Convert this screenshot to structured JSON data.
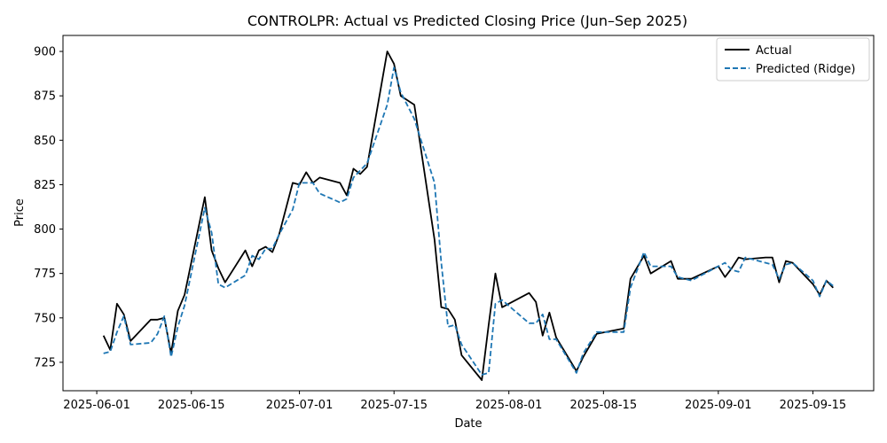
{
  "chart_data": {
    "type": "line",
    "title": "CONTROLPR: Actual vs Predicted Closing Price (Jun–Sep 2025)",
    "xlabel": "Date",
    "ylabel": "Price",
    "x_range": [
      "2025-05-27",
      "2025-09-24"
    ],
    "ylim": [
      709,
      909
    ],
    "x_ticks": [
      "2025-06-01",
      "2025-06-15",
      "2025-07-01",
      "2025-07-15",
      "2025-08-01",
      "2025-08-15",
      "2025-09-01",
      "2025-09-15"
    ],
    "y_ticks": [
      725,
      750,
      775,
      800,
      825,
      850,
      875,
      900
    ],
    "grid": false,
    "legend_position": "top-right",
    "series": [
      {
        "name": "Actual",
        "color": "#000000",
        "style": "solid",
        "x": [
          "2025-06-02",
          "2025-06-03",
          "2025-06-04",
          "2025-06-05",
          "2025-06-06",
          "2025-06-09",
          "2025-06-10",
          "2025-06-11",
          "2025-06-12",
          "2025-06-13",
          "2025-06-14",
          "2025-06-17",
          "2025-06-18",
          "2025-06-19",
          "2025-06-20",
          "2025-06-23",
          "2025-06-24",
          "2025-06-25",
          "2025-06-26",
          "2025-06-27",
          "2025-06-28",
          "2025-06-30",
          "2025-07-01",
          "2025-07-02",
          "2025-07-03",
          "2025-07-04",
          "2025-07-07",
          "2025-07-08",
          "2025-07-09",
          "2025-07-10",
          "2025-07-11",
          "2025-07-14",
          "2025-07-15",
          "2025-07-16",
          "2025-07-18",
          "2025-07-21",
          "2025-07-22",
          "2025-07-23",
          "2025-07-24",
          "2025-07-25",
          "2025-07-28",
          "2025-07-29",
          "2025-07-30",
          "2025-07-31",
          "2025-08-04",
          "2025-08-05",
          "2025-08-06",
          "2025-08-07",
          "2025-08-08",
          "2025-08-11",
          "2025-08-12",
          "2025-08-14",
          "2025-08-18",
          "2025-08-19",
          "2025-08-21",
          "2025-08-22",
          "2025-08-25",
          "2025-08-26",
          "2025-08-28",
          "2025-09-01",
          "2025-09-02",
          "2025-09-03",
          "2025-09-04",
          "2025-09-05",
          "2025-09-08",
          "2025-09-09",
          "2025-09-10",
          "2025-09-11",
          "2025-09-12",
          "2025-09-15",
          "2025-09-16",
          "2025-09-17",
          "2025-09-18"
        ],
        "values": [
          740,
          732,
          758,
          752,
          737,
          749,
          749,
          750,
          730,
          754,
          763,
          818,
          788,
          778,
          770,
          788,
          779,
          788,
          790,
          787,
          797,
          826,
          825,
          832,
          826,
          829,
          826,
          819,
          834,
          831,
          835,
          900,
          893,
          875,
          870,
          794,
          756,
          755,
          749,
          729,
          715,
          746,
          775,
          756,
          764,
          759,
          740,
          753,
          739,
          720,
          728,
          741,
          744,
          772,
          785,
          775,
          782,
          772,
          772,
          779,
          773,
          778,
          784,
          783,
          784,
          784,
          770,
          782,
          781,
          769,
          763,
          771,
          767
        ]
      },
      {
        "name": "Predicted (Ridge)",
        "color": "#1f77b4",
        "style": "dashed",
        "x": [
          "2025-06-02",
          "2025-06-03",
          "2025-06-04",
          "2025-06-05",
          "2025-06-06",
          "2025-06-09",
          "2025-06-10",
          "2025-06-11",
          "2025-06-12",
          "2025-06-13",
          "2025-06-14",
          "2025-06-17",
          "2025-06-18",
          "2025-06-19",
          "2025-06-20",
          "2025-06-23",
          "2025-06-24",
          "2025-06-25",
          "2025-06-26",
          "2025-06-27",
          "2025-06-28",
          "2025-06-30",
          "2025-07-01",
          "2025-07-02",
          "2025-07-03",
          "2025-07-04",
          "2025-07-07",
          "2025-07-08",
          "2025-07-09",
          "2025-07-10",
          "2025-07-11",
          "2025-07-14",
          "2025-07-15",
          "2025-07-16",
          "2025-07-18",
          "2025-07-21",
          "2025-07-22",
          "2025-07-23",
          "2025-07-24",
          "2025-07-25",
          "2025-07-28",
          "2025-07-29",
          "2025-07-30",
          "2025-07-31",
          "2025-08-04",
          "2025-08-05",
          "2025-08-06",
          "2025-08-07",
          "2025-08-08",
          "2025-08-11",
          "2025-08-12",
          "2025-08-14",
          "2025-08-18",
          "2025-08-19",
          "2025-08-21",
          "2025-08-22",
          "2025-08-25",
          "2025-08-26",
          "2025-08-28",
          "2025-09-01",
          "2025-09-02",
          "2025-09-03",
          "2025-09-04",
          "2025-09-05",
          "2025-09-08",
          "2025-09-09",
          "2025-09-10",
          "2025-09-11",
          "2025-09-12",
          "2025-09-15",
          "2025-09-16",
          "2025-09-17",
          "2025-09-18"
        ],
        "values": [
          730,
          731,
          742,
          751,
          735,
          736,
          741,
          751,
          728,
          745,
          757,
          812,
          798,
          769,
          767,
          774,
          785,
          783,
          789,
          789,
          797,
          811,
          826,
          826,
          826,
          820,
          815,
          817,
          829,
          833,
          837,
          870,
          891,
          877,
          862,
          826,
          781,
          745,
          746,
          735,
          718,
          719,
          758,
          760,
          747,
          747,
          752,
          738,
          738,
          719,
          730,
          742,
          742,
          767,
          787,
          779,
          779,
          773,
          771,
          779,
          781,
          777,
          776,
          784,
          781,
          780,
          772,
          780,
          781,
          771,
          762,
          771,
          768
        ]
      }
    ]
  }
}
